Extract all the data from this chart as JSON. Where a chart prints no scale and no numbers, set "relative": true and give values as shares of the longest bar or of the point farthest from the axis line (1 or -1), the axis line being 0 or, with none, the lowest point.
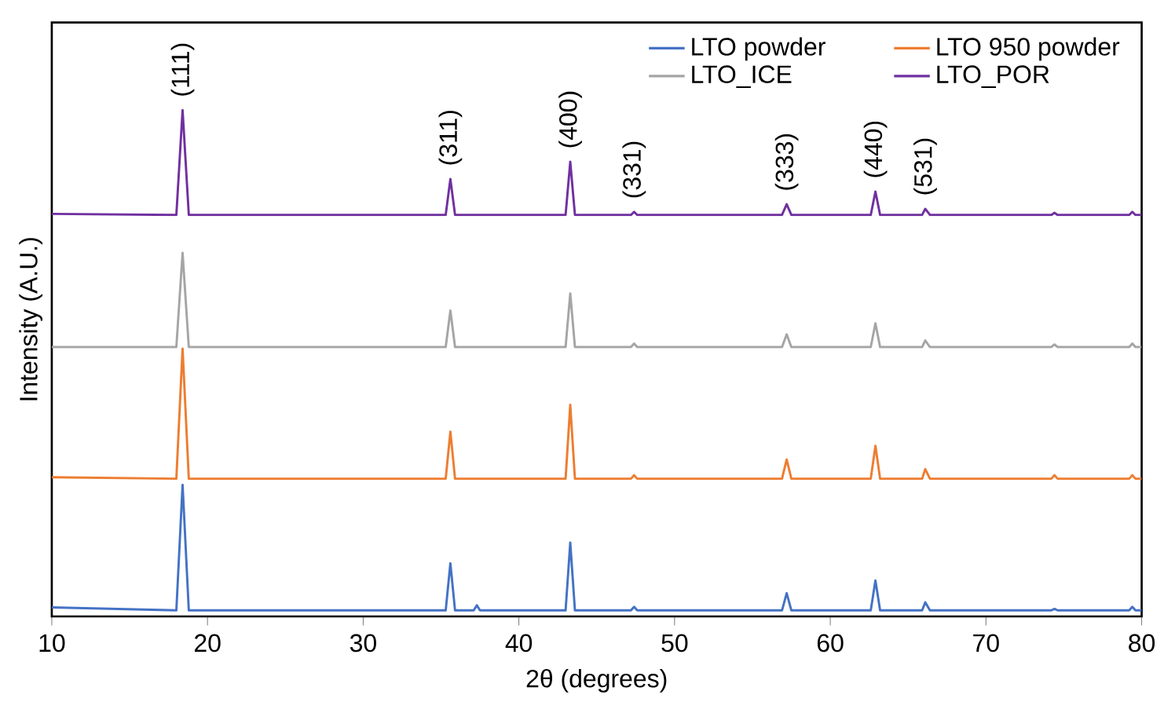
{
  "chart_data": {
    "type": "line",
    "relative": true,
    "xlabel": "2θ (degrees)",
    "ylabel": "Intensity (A.U.)",
    "xlim": [
      10,
      80
    ],
    "xticks": [
      10,
      20,
      30,
      40,
      50,
      60,
      70,
      80
    ],
    "tick_labels": "x",
    "legend": "top right",
    "grid": false,
    "marker": "none",
    "line_style": "solid",
    "series": [
      {
        "name": "LTO powder",
        "color": "#4472c4",
        "x": [
          10,
          18.0,
          18.4,
          18.8,
          35.3,
          35.6,
          35.9,
          37.1,
          37.3,
          37.5,
          43.0,
          43.3,
          43.6,
          47.2,
          47.4,
          47.6,
          56.9,
          57.2,
          57.5,
          62.6,
          62.9,
          63.2,
          65.9,
          66.1,
          66.4,
          74.2,
          74.4,
          74.6,
          79.2,
          79.4,
          79.6,
          80
        ],
        "values": [
          0.018,
          0.012,
          0.26,
          0.012,
          0.012,
          0.105,
          0.012,
          0.012,
          0.022,
          0.012,
          0.012,
          0.146,
          0.012,
          0.012,
          0.019,
          0.012,
          0.012,
          0.046,
          0.012,
          0.012,
          0.071,
          0.012,
          0.012,
          0.028,
          0.012,
          0.012,
          0.015,
          0.012,
          0.012,
          0.019,
          0.012,
          0.012
        ]
      },
      {
        "name": "LTO 950 powder",
        "color": "#ed7d31",
        "x": [
          10,
          18.0,
          18.4,
          18.8,
          35.3,
          35.6,
          35.9,
          43.0,
          43.3,
          43.6,
          47.2,
          47.4,
          47.6,
          56.9,
          57.2,
          57.5,
          62.6,
          62.9,
          63.2,
          65.9,
          66.1,
          66.4,
          74.2,
          74.4,
          74.6,
          79.2,
          79.4,
          79.6,
          80
        ],
        "values": [
          0.275,
          0.272,
          0.529,
          0.272,
          0.272,
          0.365,
          0.272,
          0.272,
          0.418,
          0.272,
          0.272,
          0.279,
          0.272,
          0.272,
          0.31,
          0.272,
          0.272,
          0.337,
          0.272,
          0.272,
          0.291,
          0.272,
          0.272,
          0.279,
          0.272,
          0.272,
          0.279,
          0.272,
          0.272
        ]
      },
      {
        "name": "LTO_ICE",
        "color": "#a5a5a5",
        "x": [
          10,
          18.0,
          18.4,
          18.8,
          35.3,
          35.6,
          35.9,
          43.0,
          43.3,
          43.6,
          47.2,
          47.4,
          47.6,
          56.9,
          57.2,
          57.5,
          62.6,
          62.9,
          63.2,
          65.9,
          66.1,
          66.4,
          74.2,
          74.4,
          74.6,
          79.2,
          79.4,
          79.6,
          80
        ],
        "values": [
          0.532,
          0.532,
          0.718,
          0.532,
          0.532,
          0.604,
          0.532,
          0.532,
          0.638,
          0.532,
          0.532,
          0.539,
          0.532,
          0.532,
          0.557,
          0.532,
          0.532,
          0.579,
          0.532,
          0.532,
          0.545,
          0.532,
          0.532,
          0.537,
          0.532,
          0.532,
          0.539,
          0.532,
          0.532
        ]
      },
      {
        "name": "LTO_POR",
        "color": "#7030a0",
        "x": [
          10,
          18.0,
          18.4,
          18.8,
          35.3,
          35.6,
          35.9,
          43.0,
          43.3,
          43.6,
          47.2,
          47.4,
          47.6,
          56.9,
          57.2,
          57.5,
          62.6,
          62.9,
          63.2,
          65.9,
          66.1,
          66.4,
          74.2,
          74.4,
          74.6,
          79.2,
          79.4,
          79.6,
          80
        ],
        "values": [
          0.795,
          0.793,
          1.0,
          0.793,
          0.793,
          0.864,
          0.793,
          0.793,
          0.898,
          0.793,
          0.793,
          0.799,
          0.793,
          0.793,
          0.814,
          0.793,
          0.793,
          0.839,
          0.793,
          0.793,
          0.805,
          0.793,
          0.793,
          0.797,
          0.793,
          0.793,
          0.799,
          0.793,
          0.793
        ]
      }
    ],
    "annotations": [
      {
        "text": "(111)",
        "x": 18.4,
        "y": 1.0
      },
      {
        "text": "(311)",
        "x": 35.6,
        "y": 0.864
      },
      {
        "text": "(400)",
        "x": 43.3,
        "y": 0.898
      },
      {
        "text": "(331)",
        "x": 47.4,
        "y": 0.799
      },
      {
        "text": "(333)",
        "x": 57.2,
        "y": 0.814
      },
      {
        "text": "(440)",
        "x": 62.9,
        "y": 0.839
      },
      {
        "text": "(531)",
        "x": 66.1,
        "y": 0.805
      }
    ]
  }
}
